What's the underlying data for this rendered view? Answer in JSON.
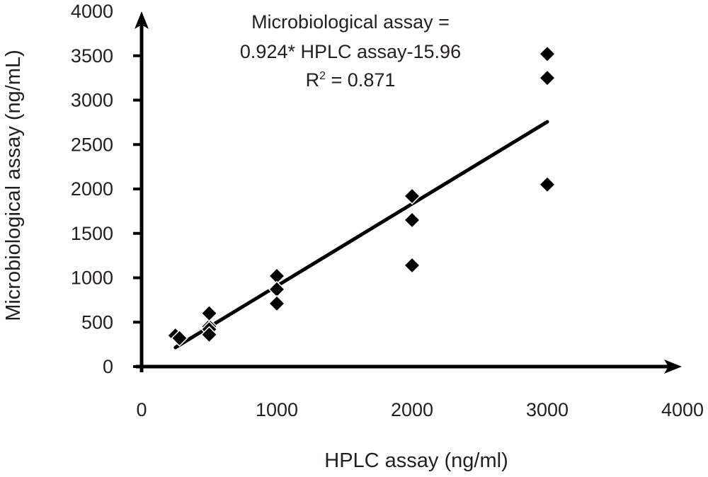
{
  "chart_data": {
    "type": "scatter",
    "title": "",
    "xlabel": "HPLC assay (ng/ml)",
    "ylabel": "Microbiological assay (ng/mL)",
    "xlim": [
      0,
      4000
    ],
    "ylim": [
      0,
      4000
    ],
    "x_ticks": [
      "0",
      "1000",
      "2000",
      "3000",
      "4000"
    ],
    "y_ticks": [
      "0",
      "500",
      "1000",
      "1500",
      "2000",
      "2500",
      "3000",
      "3500",
      "4000"
    ],
    "grid": false,
    "legend": "none",
    "marker": "diamond",
    "marker_color": "#000000",
    "points": [
      {
        "x": 250,
        "y": 350
      },
      {
        "x": 280,
        "y": 320
      },
      {
        "x": 500,
        "y": 450
      },
      {
        "x": 500,
        "y": 420
      },
      {
        "x": 500,
        "y": 360
      },
      {
        "x": 500,
        "y": 600
      },
      {
        "x": 1000,
        "y": 1020
      },
      {
        "x": 1000,
        "y": 870
      },
      {
        "x": 1000,
        "y": 710
      },
      {
        "x": 2000,
        "y": 1920
      },
      {
        "x": 2000,
        "y": 1650
      },
      {
        "x": 2000,
        "y": 1140
      },
      {
        "x": 3000,
        "y": 3520
      },
      {
        "x": 3000,
        "y": 3250
      },
      {
        "x": 3000,
        "y": 2050
      }
    ],
    "trendline": {
      "slope": 0.924,
      "intercept": -15.96,
      "x_range": [
        250,
        3000
      ]
    },
    "annotation": {
      "line1": "Microbiological assay =",
      "line2": "0.924* HPLC assay-15.96",
      "r_base": "R",
      "r_sup": "2",
      "r_rest": " = 0.871"
    }
  }
}
